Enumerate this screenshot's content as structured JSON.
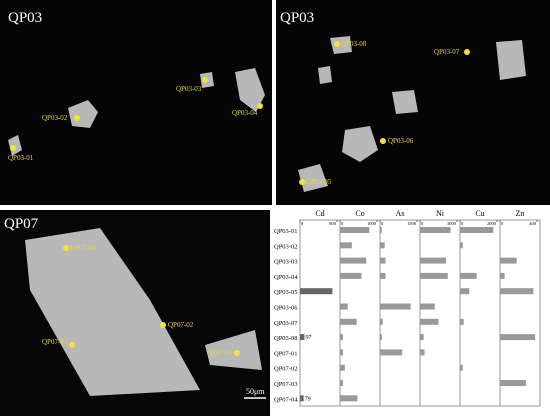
{
  "images": [
    {
      "title": "QP03",
      "labels": [
        "QP03-01",
        "QP03-02",
        "QP03-03",
        "QP03-04"
      ]
    },
    {
      "title": "QP03",
      "labels": [
        "QP03-08",
        "QP03-07",
        "QP03-06",
        "QP03-05"
      ]
    },
    {
      "title": "QP07",
      "labels": [
        "QP07-04",
        "QP07-02",
        "QP07-03",
        "QP07-01"
      ],
      "scale_bar": "50μm"
    }
  ],
  "chart_data": {
    "type": "bar",
    "orientation": "horizontal",
    "categories": [
      "QP03-01",
      "QP03-02",
      "QP03-03",
      "QP03-04",
      "QP03-05",
      "QP03-06",
      "QP03-07",
      "QP03-08",
      "QP07-01",
      "QP07-02",
      "QP07-03",
      "QP07-04"
    ],
    "panels": [
      {
        "name": "Cd",
        "color": "#666666",
        "xlim": [
          0,
          800
        ],
        "xticks": [
          0,
          800
        ],
        "values": [
          0,
          0,
          0,
          0,
          700,
          0,
          0,
          97,
          0,
          0,
          0,
          79
        ],
        "value_labels": [
          null,
          null,
          null,
          null,
          null,
          null,
          null,
          "97",
          null,
          null,
          null,
          "79"
        ]
      },
      {
        "name": "Co",
        "color": "#999999",
        "xlim": [
          0,
          1000
        ],
        "xticks": [
          0,
          1000
        ],
        "values": [
          790,
          320,
          710,
          580,
          0,
          210,
          450,
          80,
          80,
          130,
          80,
          470
        ]
      },
      {
        "name": "As",
        "color": "#999999",
        "xlim": [
          0,
          1500
        ],
        "xticks": [
          0,
          1500
        ],
        "values": [
          75,
          190,
          225,
          225,
          0,
          1240,
          110,
          75,
          900,
          0,
          0,
          0
        ]
      },
      {
        "name": "Ni",
        "color": "#999999",
        "xlim": [
          0,
          3000
        ],
        "xticks": [
          0,
          3000
        ],
        "values": [
          2480,
          0,
          2100,
          2250,
          0,
          1200,
          1500,
          300,
          375,
          0,
          0,
          0
        ]
      },
      {
        "name": "Cu",
        "color": "#999999",
        "xlim": [
          0,
          2000
        ],
        "xticks": [
          0,
          2000
        ],
        "values": [
          1800,
          150,
          0,
          900,
          500,
          0,
          200,
          0,
          0,
          150,
          0,
          0
        ]
      },
      {
        "name": "Zn",
        "color": "#999999",
        "xlim": [
          0,
          400
        ],
        "xticks": [
          0,
          400
        ],
        "values": [
          0,
          0,
          180,
          50,
          360,
          0,
          0,
          380,
          0,
          0,
          280,
          0
        ]
      }
    ]
  }
}
